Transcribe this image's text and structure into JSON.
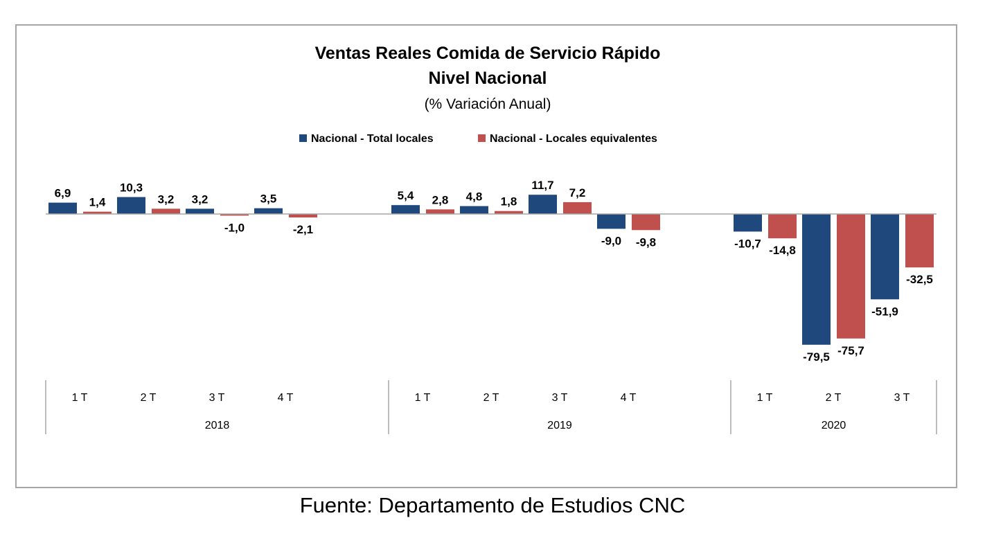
{
  "chart_data": {
    "type": "bar",
    "title": "Ventas Reales Comida de Servicio Rápido",
    "title_line2": "Nivel Nacional",
    "subtitle": "(% Variación Anual)",
    "legend_position": "top-center",
    "grid": false,
    "groups": [
      {
        "year": "2018",
        "quarters": [
          "1 T",
          "2 T",
          "3 T",
          "4 T"
        ]
      },
      {
        "year": "2019",
        "quarters": [
          "1 T",
          "2 T",
          "3 T",
          "4 T"
        ]
      },
      {
        "year": "2020",
        "quarters": [
          "1 T",
          "2 T",
          "3 T"
        ]
      }
    ],
    "series": [
      {
        "name": "Nacional - Total locales",
        "color": "#1f497d",
        "values": [
          6.9,
          10.3,
          3.2,
          3.5,
          5.4,
          4.8,
          11.7,
          -9.0,
          -10.7,
          -79.5,
          -51.9
        ],
        "labels": [
          "6,9",
          "10,3",
          "3,2",
          "3,5",
          "5,4",
          "4,8",
          "11,7",
          "-9,0",
          "-10,7",
          "-79,5",
          "-51,9"
        ]
      },
      {
        "name": "Nacional - Locales equivalentes",
        "color": "#c0504d",
        "values": [
          1.4,
          3.2,
          -1.0,
          -2.1,
          2.8,
          1.8,
          7.2,
          -9.8,
          -14.8,
          -75.7,
          -32.5
        ],
        "labels": [
          "1,4",
          "3,2",
          "-1,0",
          "-2,1",
          "2,8",
          "1,8",
          "7,2",
          "-9,8",
          "-14,8",
          "-75,7",
          "-32,5"
        ]
      }
    ]
  },
  "source_note": "Fuente: Departamento de Estudios CNC"
}
